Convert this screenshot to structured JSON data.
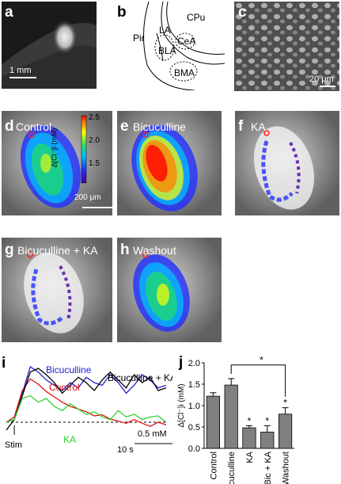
{
  "figure": {
    "panel_a": {
      "label": "a",
      "scale_bar": "1 mm"
    },
    "panel_b": {
      "label": "b",
      "regions": [
        "CPu",
        "LA",
        "Pir",
        "CeA",
        "BLA",
        "BMA"
      ]
    },
    "panel_c": {
      "label": "c",
      "scale_bar": "20 μm"
    },
    "panel_d": {
      "label": "d",
      "title": "Control",
      "colorbar_ticks": [
        "2.5",
        "2.0",
        "1.5"
      ],
      "colorbar_label": "Δ[Cl⁻]i (mM)",
      "scale_bar": "200 μm"
    },
    "panel_e": {
      "label": "e",
      "title": "Bicuculline"
    },
    "panel_f": {
      "label": "f",
      "title": "KA"
    },
    "panel_g": {
      "label": "g",
      "title": "Bicuculline + KA"
    },
    "panel_h": {
      "label": "h",
      "title": "Washout"
    },
    "panel_i": {
      "label": "i",
      "legend": [
        "Bicuculline",
        "Control",
        "Bicuculline + KA",
        "KA"
      ],
      "stim_label": "Stim",
      "scale_y": "0.5 mM",
      "scale_x": "10 s"
    },
    "panel_j": {
      "label": "j"
    }
  },
  "colors": {
    "control": "#e01010",
    "bicuculline": "#2020d0",
    "bic_ka": "#000000",
    "ka": "#30d030",
    "bar": "#808080"
  },
  "chart_data": [
    {
      "type": "line",
      "panel": "i",
      "x_unit": "s",
      "y_unit": "mM",
      "x": [
        0,
        2,
        4,
        6,
        8,
        10,
        12,
        14,
        16,
        18,
        20,
        22,
        24,
        26,
        28,
        30,
        32,
        34,
        36,
        38,
        40
      ],
      "series": [
        {
          "name": "Bicuculline",
          "values": [
            0.0,
            0.05,
            0.55,
            1.05,
            0.95,
            0.8,
            0.7,
            0.6,
            0.75,
            0.65,
            0.85,
            0.75,
            0.7,
            0.9,
            0.75,
            0.55,
            0.7,
            0.9,
            0.8,
            0.65,
            0.7
          ]
        },
        {
          "name": "Control",
          "values": [
            0.0,
            0.1,
            0.6,
            0.82,
            0.72,
            0.58,
            0.48,
            0.38,
            0.3,
            0.25,
            0.2,
            0.12,
            0.14,
            0.06,
            0.02,
            -0.02,
            0.05,
            -0.02,
            -0.08,
            0.0,
            -0.05
          ]
        },
        {
          "name": "Bicuculline + KA",
          "values": [
            -0.15,
            0.05,
            0.5,
            0.95,
            1.02,
            0.9,
            0.75,
            0.55,
            0.7,
            0.85,
            0.75,
            0.6,
            0.8,
            0.95,
            0.8,
            0.65,
            0.9,
            0.75,
            0.85,
            0.6,
            0.65
          ]
        },
        {
          "name": "KA",
          "values": [
            0.0,
            0.05,
            0.45,
            0.5,
            0.38,
            0.45,
            0.3,
            0.22,
            0.35,
            0.25,
            0.15,
            0.2,
            0.1,
            0.05,
            0.22,
            0.1,
            0.15,
            0.05,
            0.1,
            0.12,
            0.0
          ]
        }
      ]
    },
    {
      "type": "bar",
      "panel": "j",
      "categories": [
        "Control",
        "Bicuculline",
        "KA",
        "Bic + KA",
        "Washout"
      ],
      "values": [
        1.22,
        1.48,
        0.48,
        0.38,
        0.8
      ],
      "errors": [
        0.08,
        0.15,
        0.05,
        0.15,
        0.15
      ],
      "significant": [
        false,
        false,
        true,
        true,
        true
      ],
      "ylabel": "Δ[Cl⁻]i (mM)",
      "ylim": [
        0.0,
        2.0
      ],
      "yticks": [
        "0.0",
        "0.5",
        "1.0",
        "1.5",
        "2.0"
      ],
      "significance_bracket": {
        "from": "Bicuculline",
        "to": "Washout",
        "mark": "*"
      }
    }
  ]
}
